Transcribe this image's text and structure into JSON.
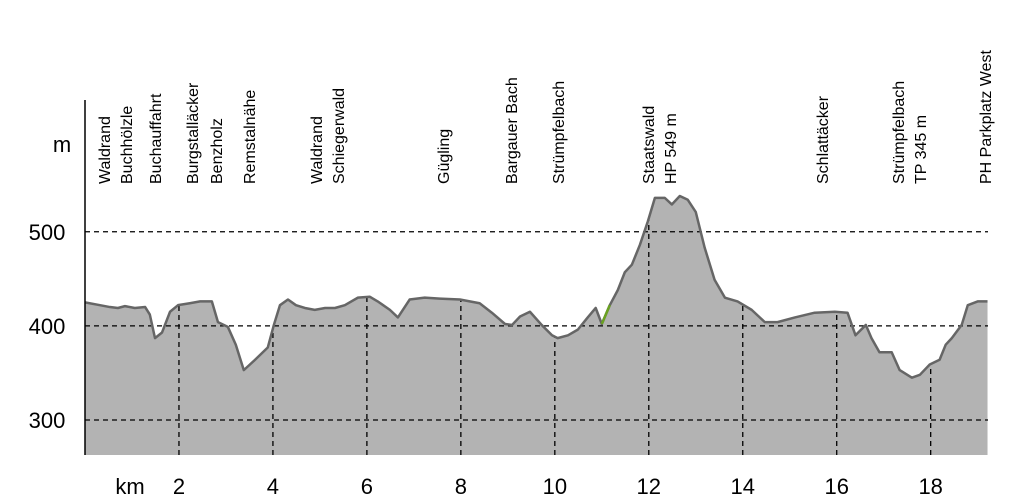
{
  "chart_data": {
    "type": "area",
    "x_label": "km",
    "y_label": "m",
    "x": [
      0,
      0.32,
      0.53,
      0.7,
      0.85,
      1.06,
      1.28,
      1.38,
      1.49,
      1.64,
      1.81,
      1.98,
      2.23,
      2.45,
      2.7,
      2.83,
      3.04,
      3.21,
      3.38,
      3.62,
      3.89,
      4.02,
      4.15,
      4.32,
      4.49,
      4.68,
      4.89,
      5.11,
      5.32,
      5.53,
      5.81,
      6.06,
      6.23,
      6.49,
      6.66,
      6.91,
      7.23,
      7.55,
      7.98,
      8.4,
      8.66,
      8.94,
      9.09,
      9.26,
      9.47,
      9.72,
      9.94,
      10.06,
      10.28,
      10.49,
      10.7,
      10.87,
      11.0,
      11.17,
      11.34,
      11.49,
      11.64,
      11.81,
      11.98,
      12.13,
      12.34,
      12.49,
      12.66,
      12.83,
      13.0,
      13.19,
      13.4,
      13.62,
      13.89,
      14.19,
      14.47,
      14.74,
      15.11,
      15.53,
      15.96,
      16.23,
      16.4,
      16.62,
      16.74,
      16.91,
      17.17,
      17.34,
      17.6,
      17.77,
      17.98,
      18.19,
      18.32,
      18.45,
      18.66,
      18.79,
      19.0,
      19.21
    ],
    "values": [
      425,
      422,
      420,
      419,
      421,
      419,
      420,
      412,
      387,
      393,
      415,
      422,
      424,
      426,
      426,
      404,
      399,
      380,
      353,
      364,
      377,
      401,
      422,
      428,
      422,
      419,
      417,
      419,
      419,
      422,
      430,
      431,
      426,
      417,
      409,
      428,
      430,
      429,
      428,
      424,
      414,
      402,
      401,
      410,
      415,
      401,
      390,
      387,
      390,
      396,
      409,
      419,
      402,
      422,
      438,
      457,
      465,
      486,
      511,
      536,
      536,
      529,
      538,
      534,
      521,
      483,
      449,
      430,
      426,
      417,
      404,
      404,
      409,
      414,
      415,
      414,
      390,
      401,
      387,
      372,
      372,
      353,
      345,
      348,
      359,
      364,
      380,
      387,
      401,
      422,
      426,
      426
    ],
    "color": "#b3b3b3",
    "line_color": "#666666",
    "highlight": {
      "xlim": [
        11.0,
        11.17
      ],
      "color": "#6aa121"
    },
    "xlim": [
      0,
      19.22
    ],
    "ylim": [
      262.8,
      640
    ],
    "xticks": [
      2,
      4,
      6,
      8,
      10,
      12,
      14,
      16,
      18
    ],
    "yticks": [
      300,
      400,
      500
    ],
    "grid": true,
    "waypoints": [
      [
        "Waldrand",
        "Buchhölzle"
      ],
      [
        "Buchauffahrt"
      ],
      [
        "Burgstalläcker",
        "Benzholz"
      ],
      [
        "Remstalnähe"
      ],
      [
        "Waldrand",
        "Schiegerwald"
      ],
      [
        "Gügling"
      ],
      [
        "Bargauer Bach"
      ],
      [
        "Strümpfelbach"
      ],
      [
        "Staatswald",
        "HP 549 m"
      ],
      [
        "Schlattäcker"
      ],
      [
        "Strümpfelbach",
        "TP 345 m"
      ],
      [
        "PH Parkplatz West"
      ]
    ]
  }
}
